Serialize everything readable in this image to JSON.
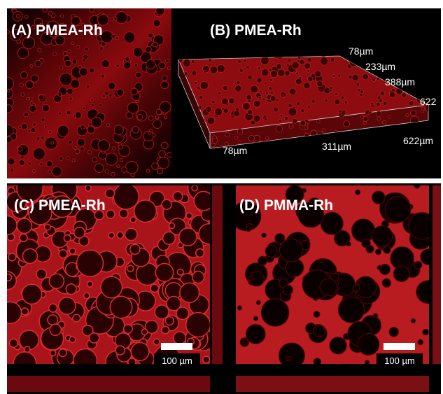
{
  "panels": [
    {
      "label": "(A) PMEA-Rh"
    },
    {
      "label": "(B) PMEA-Rh",
      "axis_labels": [
        "78µm",
        "233µm",
        "388µm",
        "622",
        "78µm",
        "311µm",
        "622µm"
      ]
    },
    {
      "label": "(C) PMEA-Rh",
      "scale_bar": "100 µm"
    },
    {
      "label": "(D) PMMA-Rh",
      "scale_bar": "100 µm"
    }
  ]
}
